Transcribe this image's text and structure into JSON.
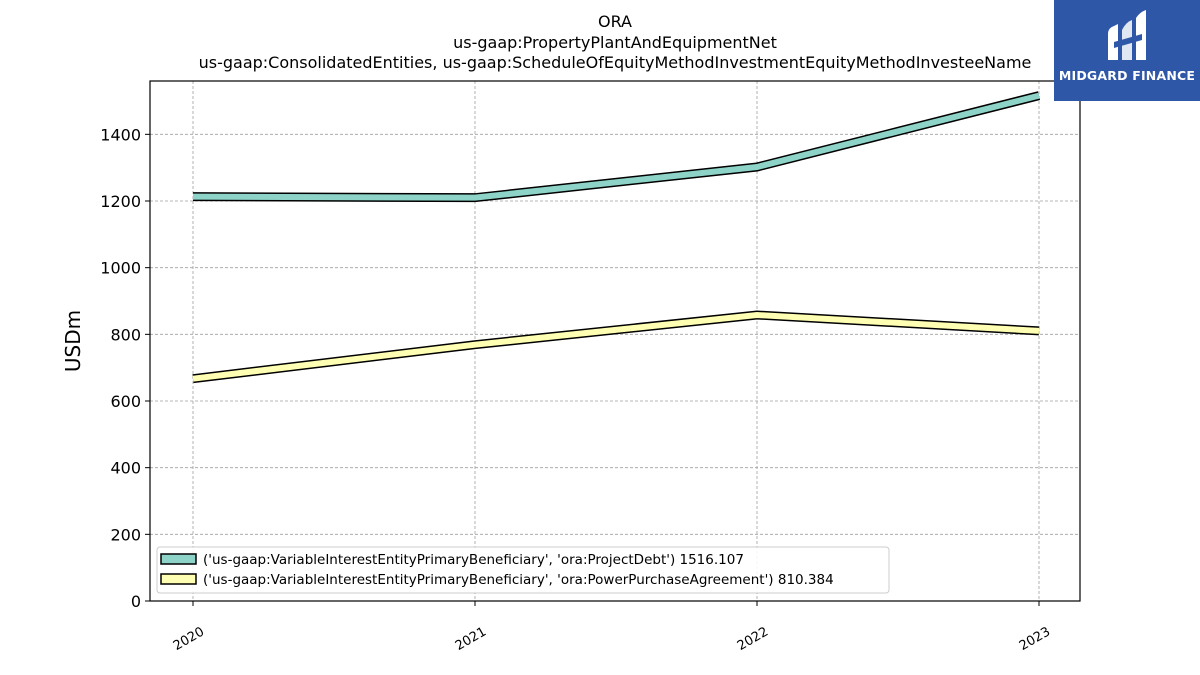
{
  "chart_data": {
    "type": "line",
    "title_lines": [
      "ORA",
      "us-gaap:PropertyPlantAndEquipmentNet",
      "us-gaap:ConsolidatedEntities, us-gaap:ScheduleOfEquityMethodInvestmentEquityMethodInvesteeName"
    ],
    "xlabel": "",
    "ylabel": "USDm",
    "categories": [
      "2020",
      "2021",
      "2022",
      "2023"
    ],
    "ylim": [
      0,
      1560
    ],
    "yticks": [
      0,
      200,
      400,
      600,
      800,
      1000,
      1200,
      1400
    ],
    "grid": true,
    "legend_position": "lower-left",
    "series": [
      {
        "name": "('us-gaap:VariableInterestEntityPrimaryBeneficiary', 'ora:ProjectDebt') 1516.107",
        "values": [
          1213,
          1210,
          1302,
          1516.107
        ],
        "color": "#8dd3c7"
      },
      {
        "name": "('us-gaap:VariableInterestEntityPrimaryBeneficiary', 'ora:PowerPurchaseAgreement') 810.384",
        "values": [
          667,
          769,
          858,
          810.384
        ],
        "color": "#ffffb3"
      }
    ]
  },
  "logo": {
    "text": "MIDGARD FINANCE",
    "color": "#2f57a8"
  }
}
